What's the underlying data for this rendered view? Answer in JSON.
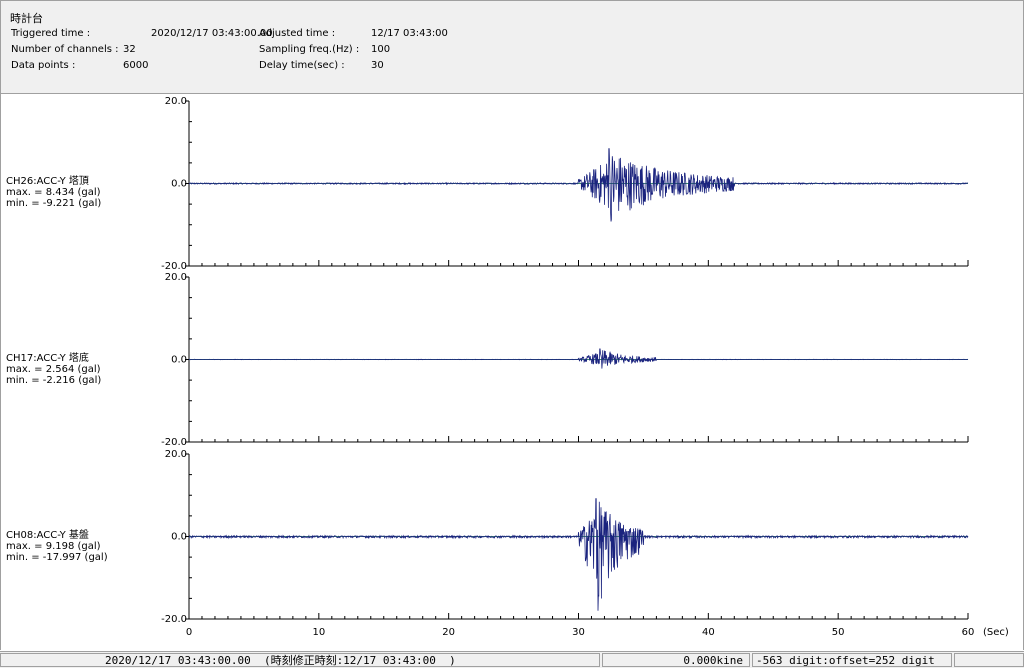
{
  "header": {
    "title": "時計台",
    "triggered_label": "Triggered time :",
    "triggered_value": "2020/12/17 03:43:00.00",
    "channels_label": "Number of channels :",
    "channels_value": "32",
    "datapoints_label": "Data points :",
    "datapoints_value": "6000",
    "adjusted_label": "Adjusted time :",
    "adjusted_value": "12/17 03:43:00",
    "sampling_label": "Sampling freq.(Hz) :",
    "sampling_value": "100",
    "delay_label": "Delay time(sec) :",
    "delay_value": "30"
  },
  "channels": [
    {
      "name": "CH26:ACC-Y 塔頂",
      "max": "max. = 8.434 (gal)",
      "min": "min. = -9.221 (gal)"
    },
    {
      "name": "CH17:ACC-Y 塔底",
      "max": "max. = 2.564 (gal)",
      "min": "min. = -2.216 (gal)"
    },
    {
      "name": "CH08:ACC-Y 基盤",
      "max": "max. = 9.198 (gal)",
      "min": "min. = -17.997 (gal)"
    }
  ],
  "chart_data": {
    "type": "line",
    "xlabel": "(Sec)",
    "xlim": [
      0,
      60
    ],
    "x_ticks": [
      "0",
      "10",
      "20",
      "30",
      "40",
      "50",
      "60"
    ],
    "y_tick_labels": [
      "20.0",
      "0.0",
      "-20.0"
    ],
    "ylim": [
      -20,
      20
    ],
    "line_color": "#1a237e",
    "series": [
      {
        "name": "CH26:ACC-Y 塔頂",
        "max": 8.434,
        "min": -9.221,
        "onset_sec": 30,
        "peak_sec": 32.5,
        "decay_end_sec": 42
      },
      {
        "name": "CH17:ACC-Y 塔底",
        "max": 2.564,
        "min": -2.216,
        "onset_sec": 30,
        "peak_sec": 31.8,
        "decay_end_sec": 36
      },
      {
        "name": "CH08:ACC-Y 基盤",
        "max": 9.198,
        "min": -17.997,
        "onset_sec": 30,
        "peak_sec": 31.5,
        "decay_end_sec": 35
      }
    ]
  },
  "statusbar": {
    "time": "2020/12/17 03:43:00.00  (時刻修正時刻:12/17 03:43:00  )",
    "velocity": "0.000kine",
    "digit": "-563 digit:offset=252 digit"
  }
}
